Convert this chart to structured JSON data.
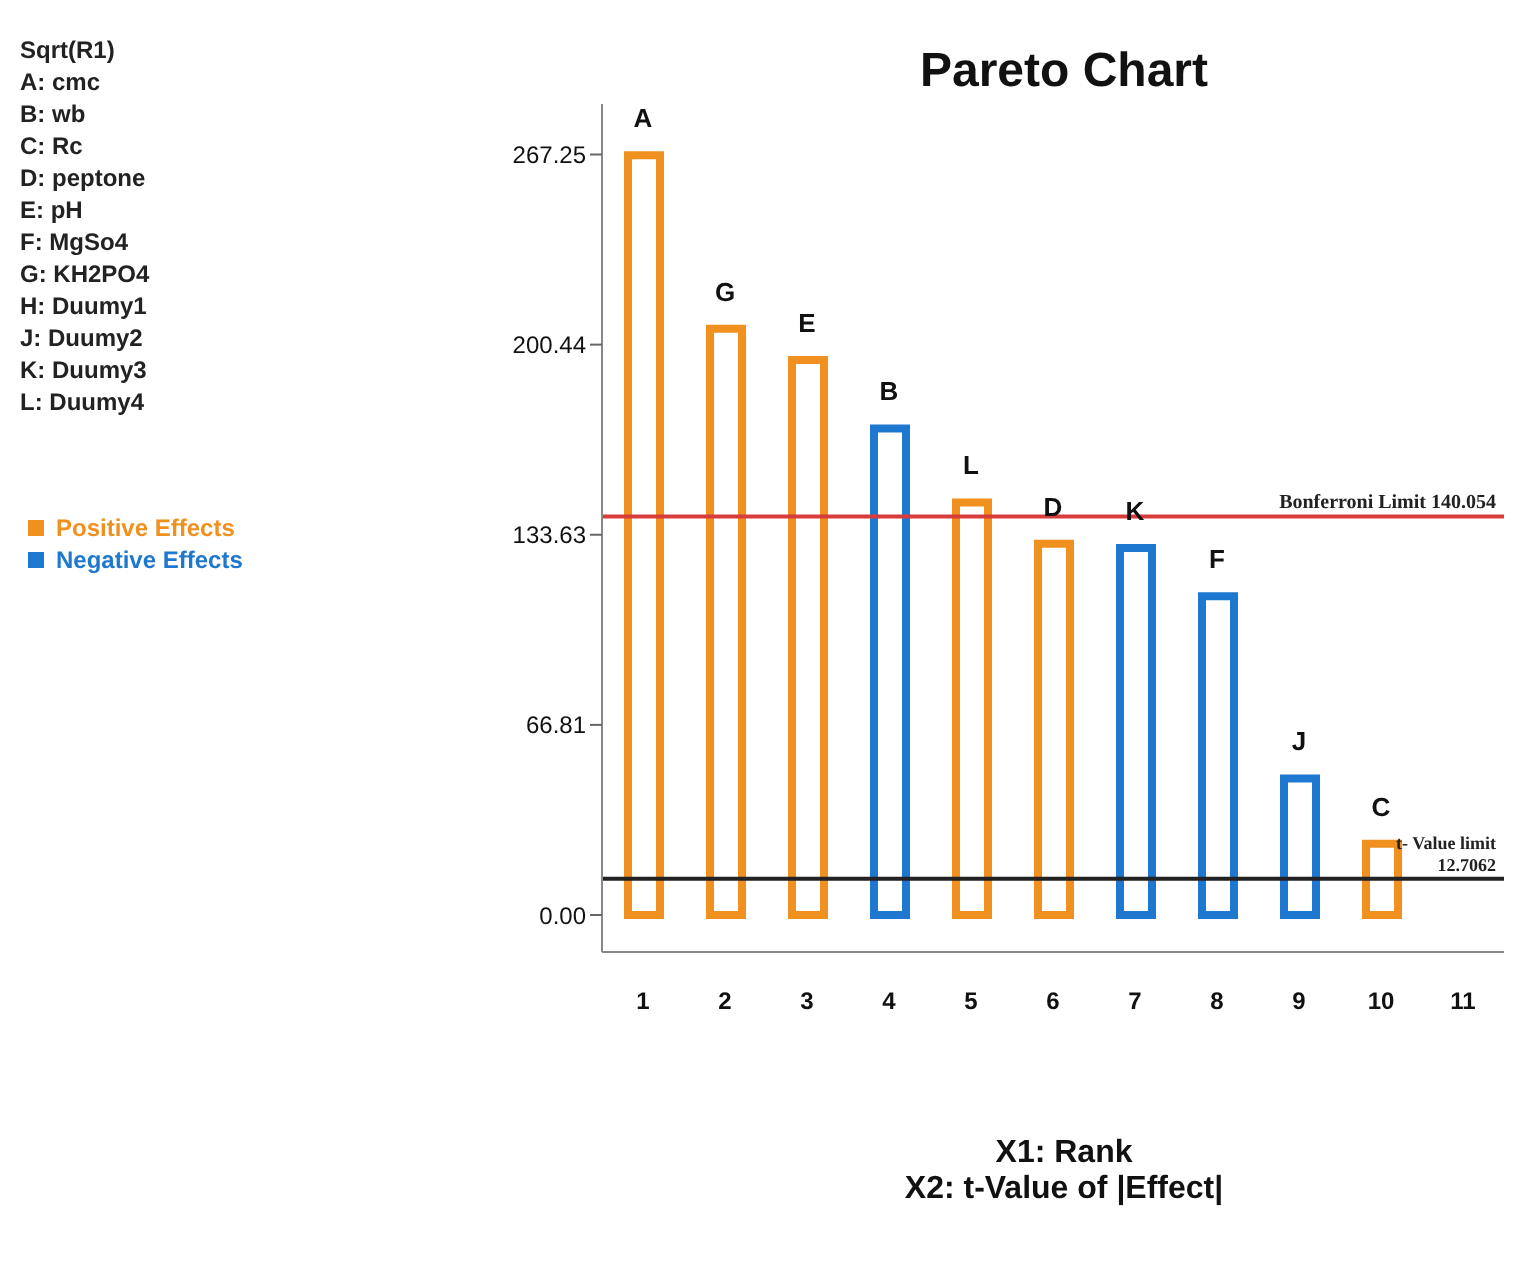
{
  "chart_data": {
    "type": "bar",
    "title": "Pareto Chart",
    "xlabel": "X1: Rank\nX2: t-Value of |Effect|",
    "categories": [
      "1",
      "2",
      "3",
      "4",
      "5",
      "6",
      "7",
      "8",
      "9",
      "10",
      "11"
    ],
    "stacked": true,
    "series": [
      {
        "name": "Positive Effects",
        "color": "#f0901e",
        "values": [
          267,
          206,
          195,
          null,
          145,
          130.5,
          null,
          null,
          null,
          25,
          null
        ]
      },
      {
        "name": "Negative Effects",
        "color": "#1f78d0",
        "values": [
          null,
          null,
          null,
          171,
          null,
          null,
          129,
          112,
          48,
          null,
          null
        ]
      }
    ],
    "ylim": [
      -13,
      285
    ],
    "yticks": [
      {
        "value": 0,
        "label": "0.00"
      },
      66.81,
      133.63,
      200.44,
      267.25
    ],
    "ref_lines": [
      {
        "axis": "y",
        "value": 140.054,
        "label": "Bonferroni Limit 140.054",
        "color": "#d83c3c"
      },
      {
        "axis": "y",
        "value": 12.7062,
        "label": "t- Value limit 12.7062",
        "color": "#222222"
      }
    ],
    "legend": "left",
    "grid": false,
    "annotations": [
      "Sqrt(R1)",
      "A: cmc",
      "B: wb",
      "C: Rc",
      "D: peptone",
      "E: pH",
      "F: MgSo4",
      "G: KH2PO4",
      "H: Duumy1",
      "J: Duumy2",
      "K: Duumy3",
      "L: Duumy4",
      {
        "text": "A",
        "x": "1",
        "y": 267
      },
      {
        "text": "G",
        "x": "2",
        "y": 206
      },
      {
        "text": "E",
        "x": "3",
        "y": 195
      },
      {
        "text": "B",
        "x": "4",
        "y": 171
      },
      {
        "text": "L",
        "x": "5",
        "y": 145
      },
      {
        "text": "D",
        "x": "6",
        "y": 130.5
      },
      {
        "text": "K",
        "x": "7",
        "y": 129
      },
      {
        "text": "F",
        "x": "8",
        "y": 112
      },
      {
        "text": "J",
        "x": "9",
        "y": 48
      },
      {
        "text": "C",
        "x": "10",
        "y": 25
      }
    ]
  }
}
